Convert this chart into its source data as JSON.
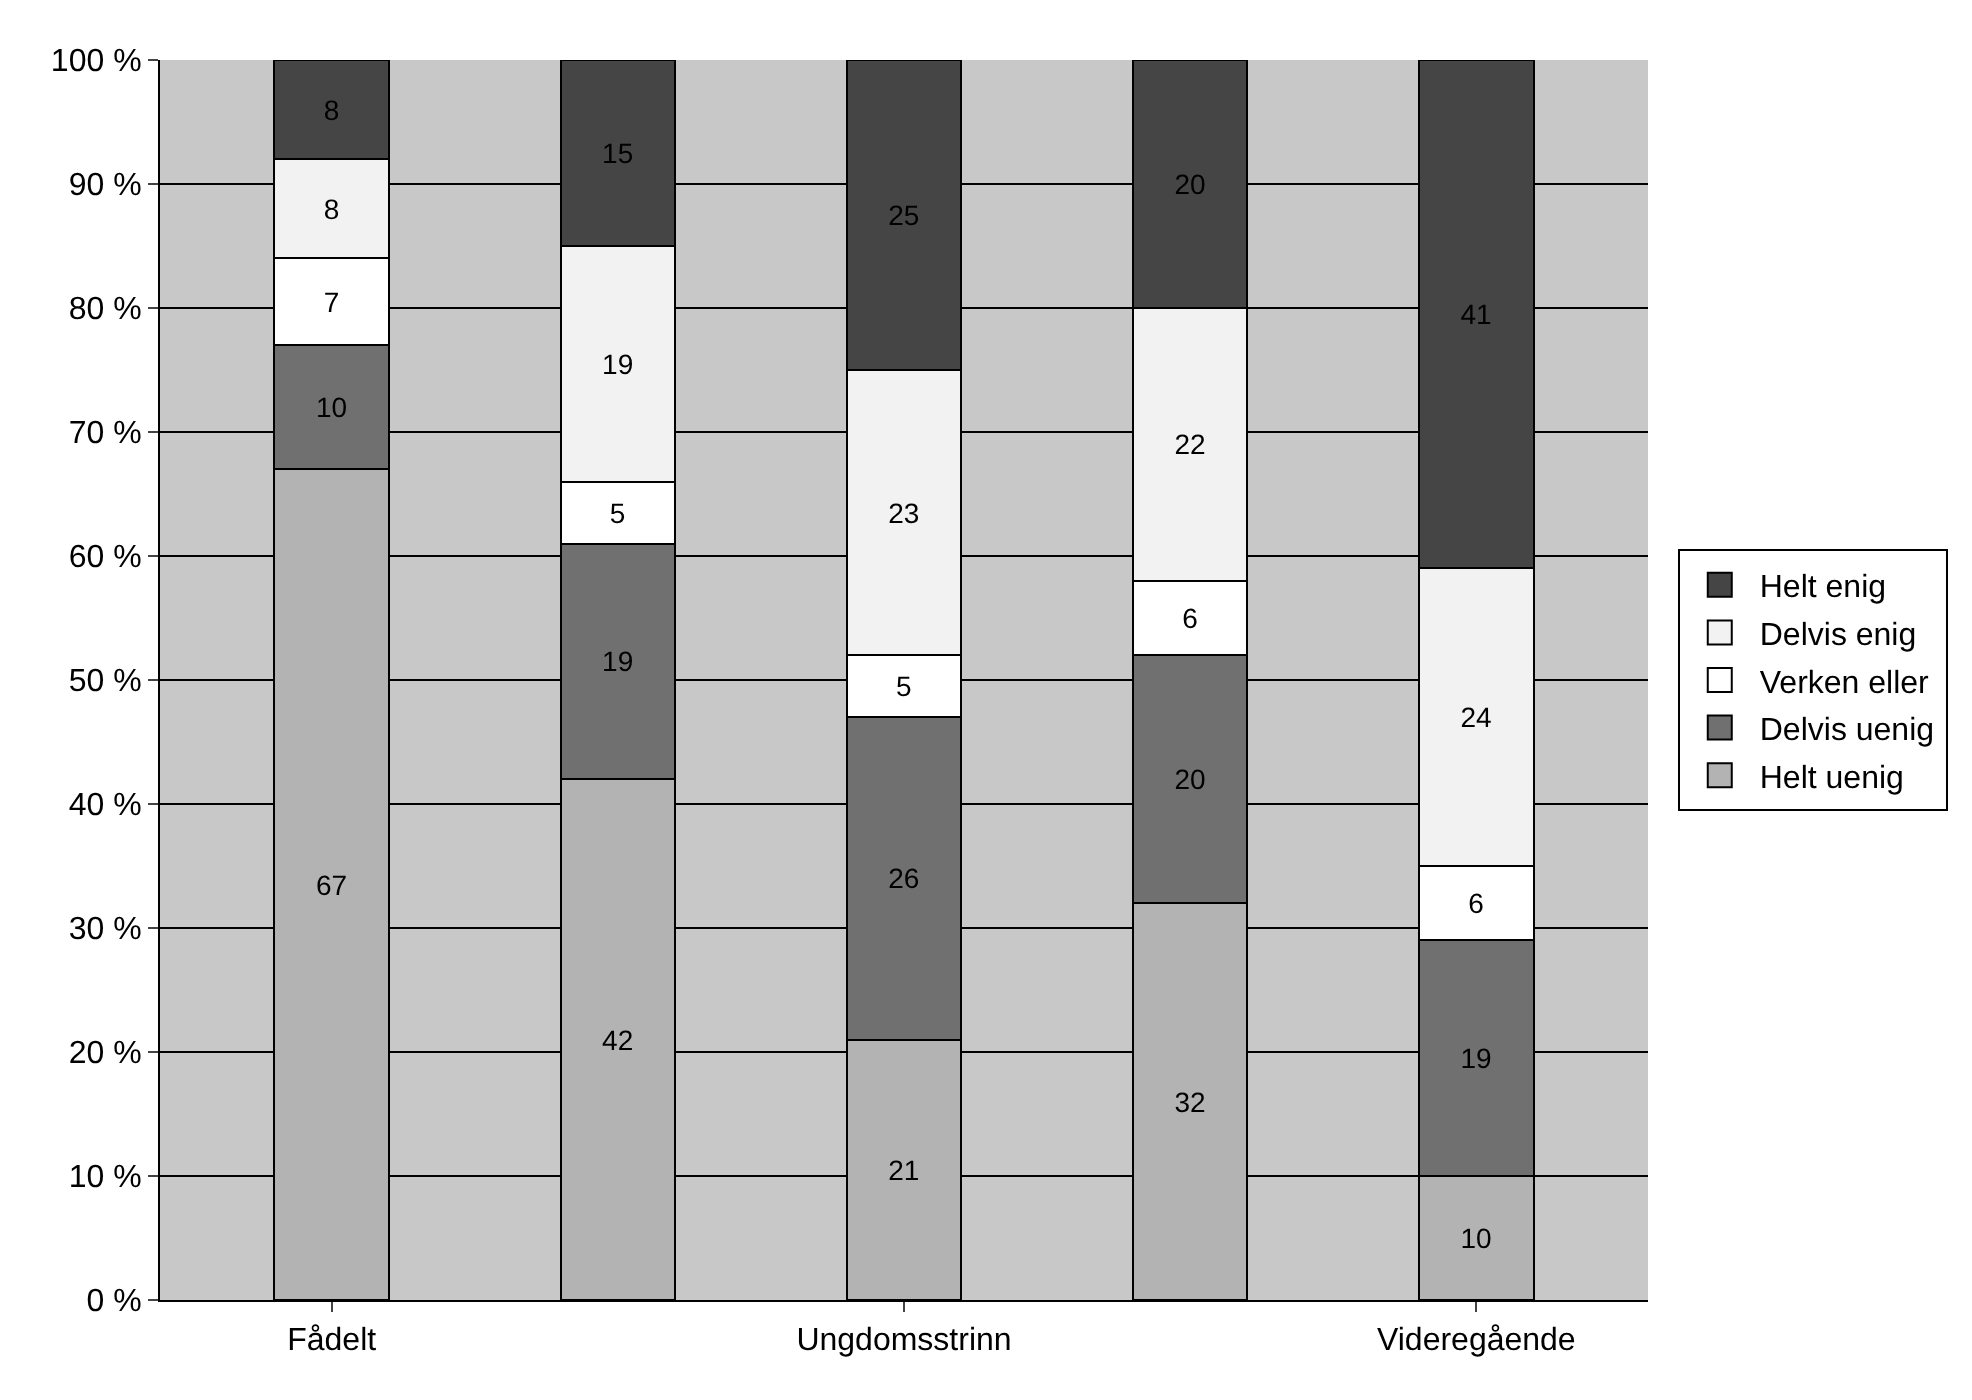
{
  "chart_data": {
    "type": "bar",
    "stacked": true,
    "categories": [
      "Fådelt",
      null,
      "Ungdomsstrinn",
      null,
      "Videregående"
    ],
    "series": [
      {
        "name": "Helt uenig",
        "color": "#b3b3b3",
        "values": [
          67,
          42,
          21,
          32,
          10
        ]
      },
      {
        "name": "Delvis uenig",
        "color": "#707070",
        "values": [
          10,
          19,
          26,
          20,
          19
        ]
      },
      {
        "name": "Verken eller",
        "color": "#ffffff",
        "values": [
          7,
          5,
          5,
          6,
          6
        ]
      },
      {
        "name": "Delvis enig",
        "color": "#f2f2f2",
        "values": [
          8,
          19,
          23,
          22,
          24
        ]
      },
      {
        "name": "Helt enig",
        "color": "#454545",
        "values": [
          8,
          15,
          25,
          20,
          41
        ]
      }
    ],
    "ylim": [
      0,
      100
    ],
    "yticks": [
      {
        "value": 0,
        "label": "0 %"
      },
      {
        "value": 10,
        "label": "10 %"
      },
      {
        "value": 20,
        "label": "20 %"
      },
      {
        "value": 30,
        "label": "30 %"
      },
      {
        "value": 40,
        "label": "40 %"
      },
      {
        "value": 50,
        "label": "50 %"
      },
      {
        "value": 60,
        "label": "60 %"
      },
      {
        "value": 70,
        "label": "70 %"
      },
      {
        "value": 80,
        "label": "80 %"
      },
      {
        "value": 90,
        "label": "90 %"
      },
      {
        "value": 100,
        "label": "100 %"
      }
    ],
    "grid": "y",
    "legend": "right",
    "data_labels": true
  }
}
